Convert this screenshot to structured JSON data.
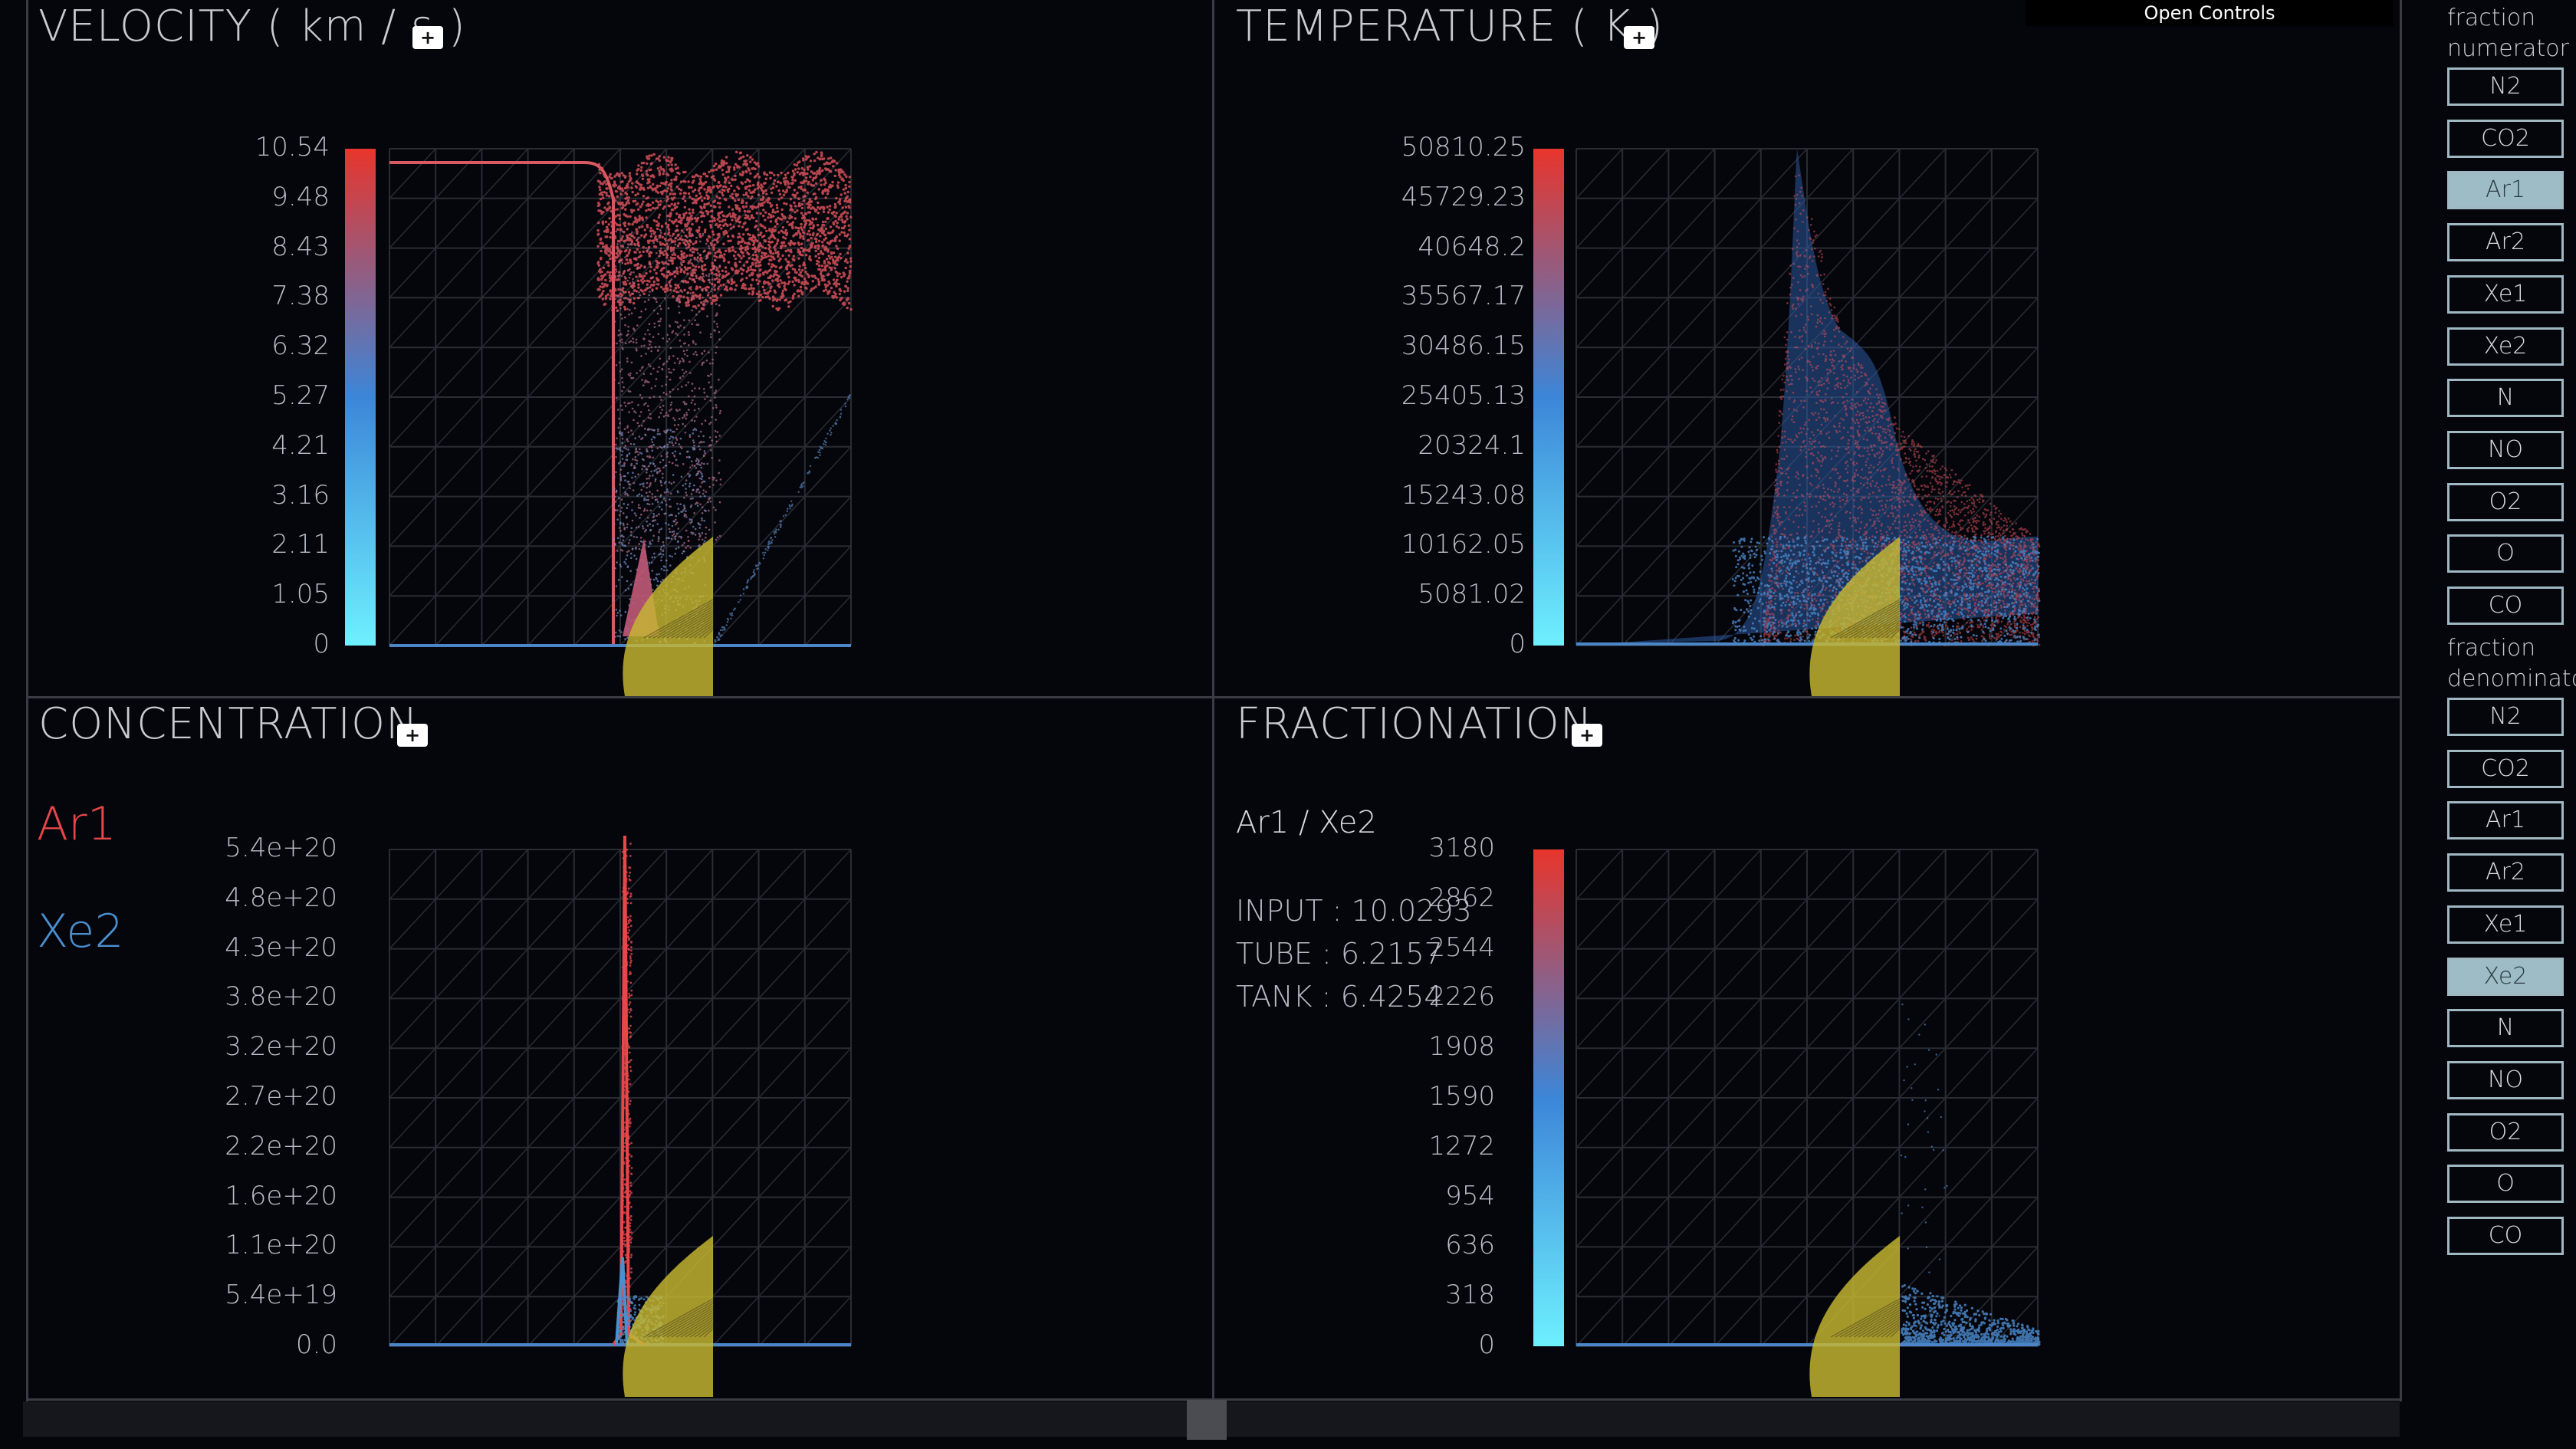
{
  "panels": {
    "velocity": {
      "title": "VELOCITY ( km / s )",
      "plus_label": "+",
      "yticks": [
        "10.54",
        "9.48",
        "8.43",
        "7.38",
        "6.32",
        "5.27",
        "4.21",
        "3.16",
        "2.11",
        "1.05",
        "0"
      ]
    },
    "temperature": {
      "title": "TEMPERATURE ( K )",
      "plus_label": "+",
      "yticks": [
        "50810.25",
        "45729.23",
        "40648.2",
        "35567.17",
        "30486.15",
        "25405.13",
        "20324.1",
        "15243.08",
        "10162.05",
        "5081.02",
        "0"
      ]
    },
    "concentration": {
      "title": "CONCENTRATION",
      "plus_label": "+",
      "legend": [
        {
          "name": "Ar1",
          "color": "#e8474a"
        },
        {
          "name": "Xe2",
          "color": "#4a90d0"
        }
      ],
      "yticks": [
        "5.4e+20",
        "4.8e+20",
        "4.3e+20",
        "3.8e+20",
        "3.2e+20",
        "2.7e+20",
        "2.2e+20",
        "1.6e+20",
        "1.1e+20",
        "5.4e+19",
        "0.0"
      ]
    },
    "fractionation": {
      "title": "FRACTIONATION",
      "plus_label": "+",
      "ratio_label": "Ar1 / Xe2",
      "input_line": "INPUT : 10.0293",
      "tube_line": "TUBE : 6.2157",
      "tank_line": "TANK : 6.4254",
      "yticks": [
        "3180",
        "2862",
        "2544",
        "2226",
        "1908",
        "1590",
        "1272",
        "954",
        "636",
        "318",
        "0"
      ]
    }
  },
  "open_controls_label": "Open Controls",
  "sidebar": {
    "numerator_label_1": "fraction",
    "numerator_label_2": "numerator",
    "numerator_items": [
      {
        "label": "N2",
        "active": false
      },
      {
        "label": "CO2",
        "active": false
      },
      {
        "label": "Ar1",
        "active": true
      },
      {
        "label": "Ar2",
        "active": false
      },
      {
        "label": "Xe1",
        "active": false
      },
      {
        "label": "Xe2",
        "active": false
      },
      {
        "label": "N",
        "active": false
      },
      {
        "label": "NO",
        "active": false
      },
      {
        "label": "O2",
        "active": false
      },
      {
        "label": "O",
        "active": false
      },
      {
        "label": "CO",
        "active": false
      }
    ],
    "denominator_label_1": "fraction",
    "denominator_label_2": "denominator",
    "denominator_items": [
      {
        "label": "N2",
        "active": false
      },
      {
        "label": "CO2",
        "active": false
      },
      {
        "label": "Ar1",
        "active": false
      },
      {
        "label": "Ar2",
        "active": false
      },
      {
        "label": "Xe1",
        "active": false
      },
      {
        "label": "Xe2",
        "active": true
      },
      {
        "label": "N",
        "active": false
      },
      {
        "label": "NO",
        "active": false
      },
      {
        "label": "O2",
        "active": false
      },
      {
        "label": "O",
        "active": false
      },
      {
        "label": "CO",
        "active": false
      }
    ]
  },
  "colors": {
    "high": "#e8352c",
    "mid": "#3c86d8",
    "low": "#6ef0ff",
    "particle_red": "#d9505a",
    "particle_blue": "#4a86c8",
    "body_yellow": "#c8b832",
    "grid": "#2a2c33"
  }
}
